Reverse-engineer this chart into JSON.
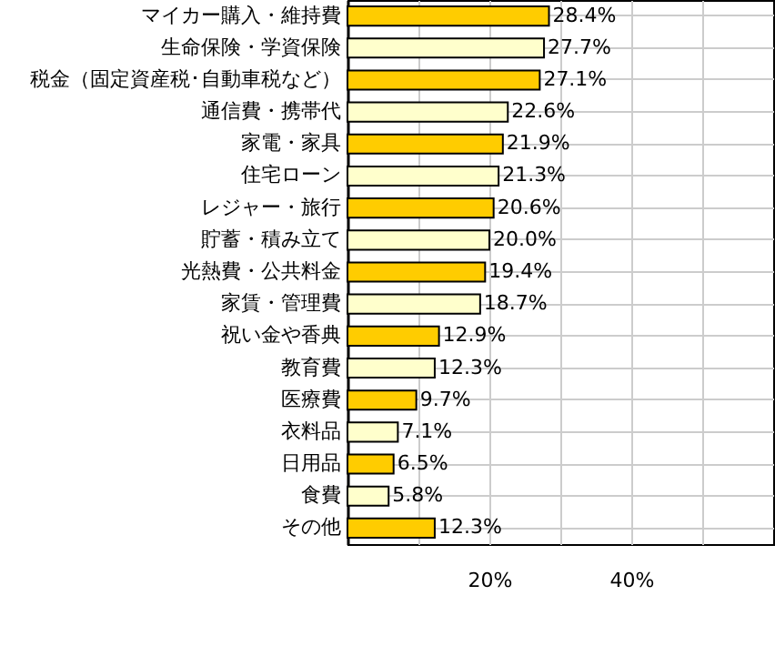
{
  "chart_data": {
    "type": "bar",
    "orientation": "horizontal",
    "categories": [
      "マイカー購入・維持費",
      "生命保険・学資保険",
      "税金（固定資産税･自動車税など）",
      "通信費・携帯代",
      "家電・家具",
      "住宅ローン",
      "レジャー・旅行",
      "貯蓄・積み立て",
      "光熱費・公共料金",
      "家賃・管理費",
      "祝い金や香典",
      "教育費",
      "医療費",
      "衣料品",
      "日用品",
      "食費",
      "その他"
    ],
    "values": [
      28.4,
      27.7,
      27.1,
      22.6,
      21.9,
      21.3,
      20.6,
      20.0,
      19.4,
      18.7,
      12.9,
      12.3,
      9.7,
      7.1,
      6.5,
      5.8,
      12.3
    ],
    "value_labels": [
      "28.4%",
      "27.7%",
      "27.1%",
      "22.6%",
      "21.9%",
      "21.3%",
      "20.6%",
      "20.0%",
      "19.4%",
      "18.7%",
      "12.9%",
      "12.3%",
      "9.7%",
      "7.1%",
      "6.5%",
      "5.8%",
      "12.3%"
    ],
    "colors": [
      "#ffcc00",
      "#ffffcc",
      "#ffcc00",
      "#ffffcc",
      "#ffcc00",
      "#ffffcc",
      "#ffcc00",
      "#ffffcc",
      "#ffcc00",
      "#ffffcc",
      "#ffcc00",
      "#ffffcc",
      "#ffcc00",
      "#ffffcc",
      "#ffcc00",
      "#ffffcc",
      "#ffcc00"
    ],
    "xlim": [
      0,
      60
    ],
    "xticks": [
      {
        "value": 0,
        "label": null
      },
      {
        "value": 10,
        "label": null
      },
      {
        "value": 20,
        "label": "20%"
      },
      {
        "value": 30,
        "label": null
      },
      {
        "value": 40,
        "label": "40%"
      },
      {
        "value": 50,
        "label": null
      }
    ],
    "grid": true
  }
}
